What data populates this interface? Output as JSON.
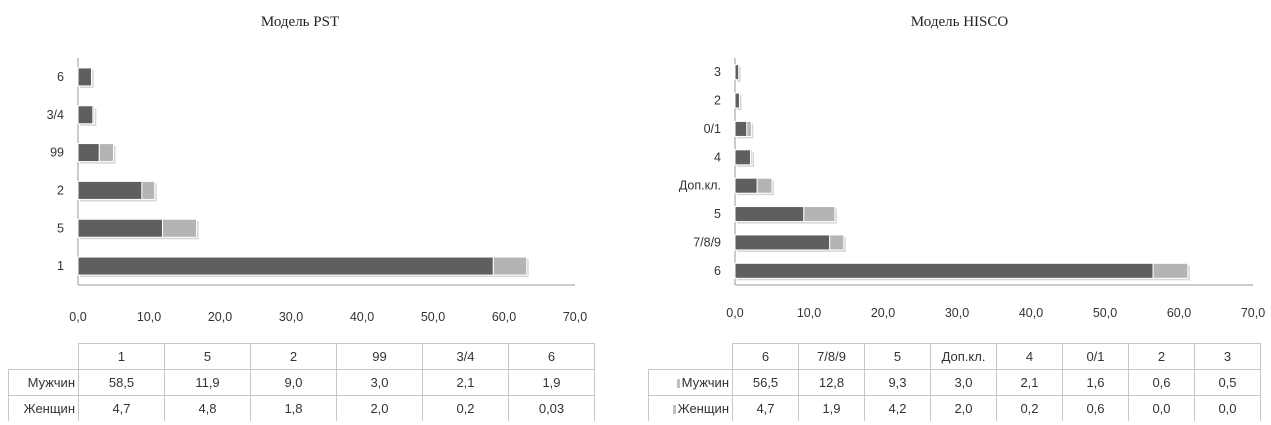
{
  "chart_data": [
    {
      "type": "bar",
      "orientation": "horizontal",
      "stacked": true,
      "title": "Модель PST",
      "categories": [
        "1",
        "5",
        "2",
        "99",
        "3/4",
        "6"
      ],
      "series": [
        {
          "name": "Мужчин",
          "values": [
            "58,5",
            "11,9",
            "9,0",
            "3,0",
            "2,1",
            "1,9"
          ],
          "numeric": [
            58.5,
            11.9,
            9.0,
            3.0,
            2.1,
            1.9
          ],
          "color": "#5f5f5f"
        },
        {
          "name": "Женщин",
          "values": [
            "4,7",
            "4,8",
            "1,8",
            "2,0",
            "0,2",
            "0,03"
          ],
          "numeric": [
            4.7,
            4.8,
            1.8,
            2.0,
            0.2,
            0.03
          ],
          "color": "#b4b4b4"
        }
      ],
      "xlim": [
        0,
        70
      ],
      "xticks": [
        "0,0",
        "10,0",
        "20,0",
        "30,0",
        "40,0",
        "50,0",
        "60,0",
        "70,0"
      ],
      "grid": false,
      "legend": "data table below chart"
    },
    {
      "type": "bar",
      "orientation": "horizontal",
      "stacked": true,
      "title": "Модель HISCO",
      "categories": [
        "6",
        "7/8/9",
        "5",
        "Доп.кл.",
        "4",
        "0/1",
        "2",
        "3"
      ],
      "series": [
        {
          "name": "Мужчин",
          "values": [
            "56,5",
            "12,8",
            "9,3",
            "3,0",
            "2,1",
            "1,6",
            "0,6",
            "0,5"
          ],
          "numeric": [
            56.5,
            12.8,
            9.3,
            3.0,
            2.1,
            1.6,
            0.6,
            0.5
          ],
          "color": "#5f5f5f"
        },
        {
          "name": "Женщин",
          "values": [
            "4,7",
            "1,9",
            "4,2",
            "2,0",
            "0,2",
            "0,6",
            "0,0",
            "0,0"
          ],
          "numeric": [
            4.7,
            1.9,
            4.2,
            2.0,
            0.2,
            0.6,
            0.0,
            0.0
          ],
          "color": "#b4b4b4"
        }
      ],
      "xlim": [
        0,
        70
      ],
      "xticks": [
        "0,0",
        "10,0",
        "20,0",
        "30,0",
        "40,0",
        "50,0",
        "60,0",
        "70,0"
      ],
      "grid": false,
      "legend": "data table below chart"
    }
  ]
}
